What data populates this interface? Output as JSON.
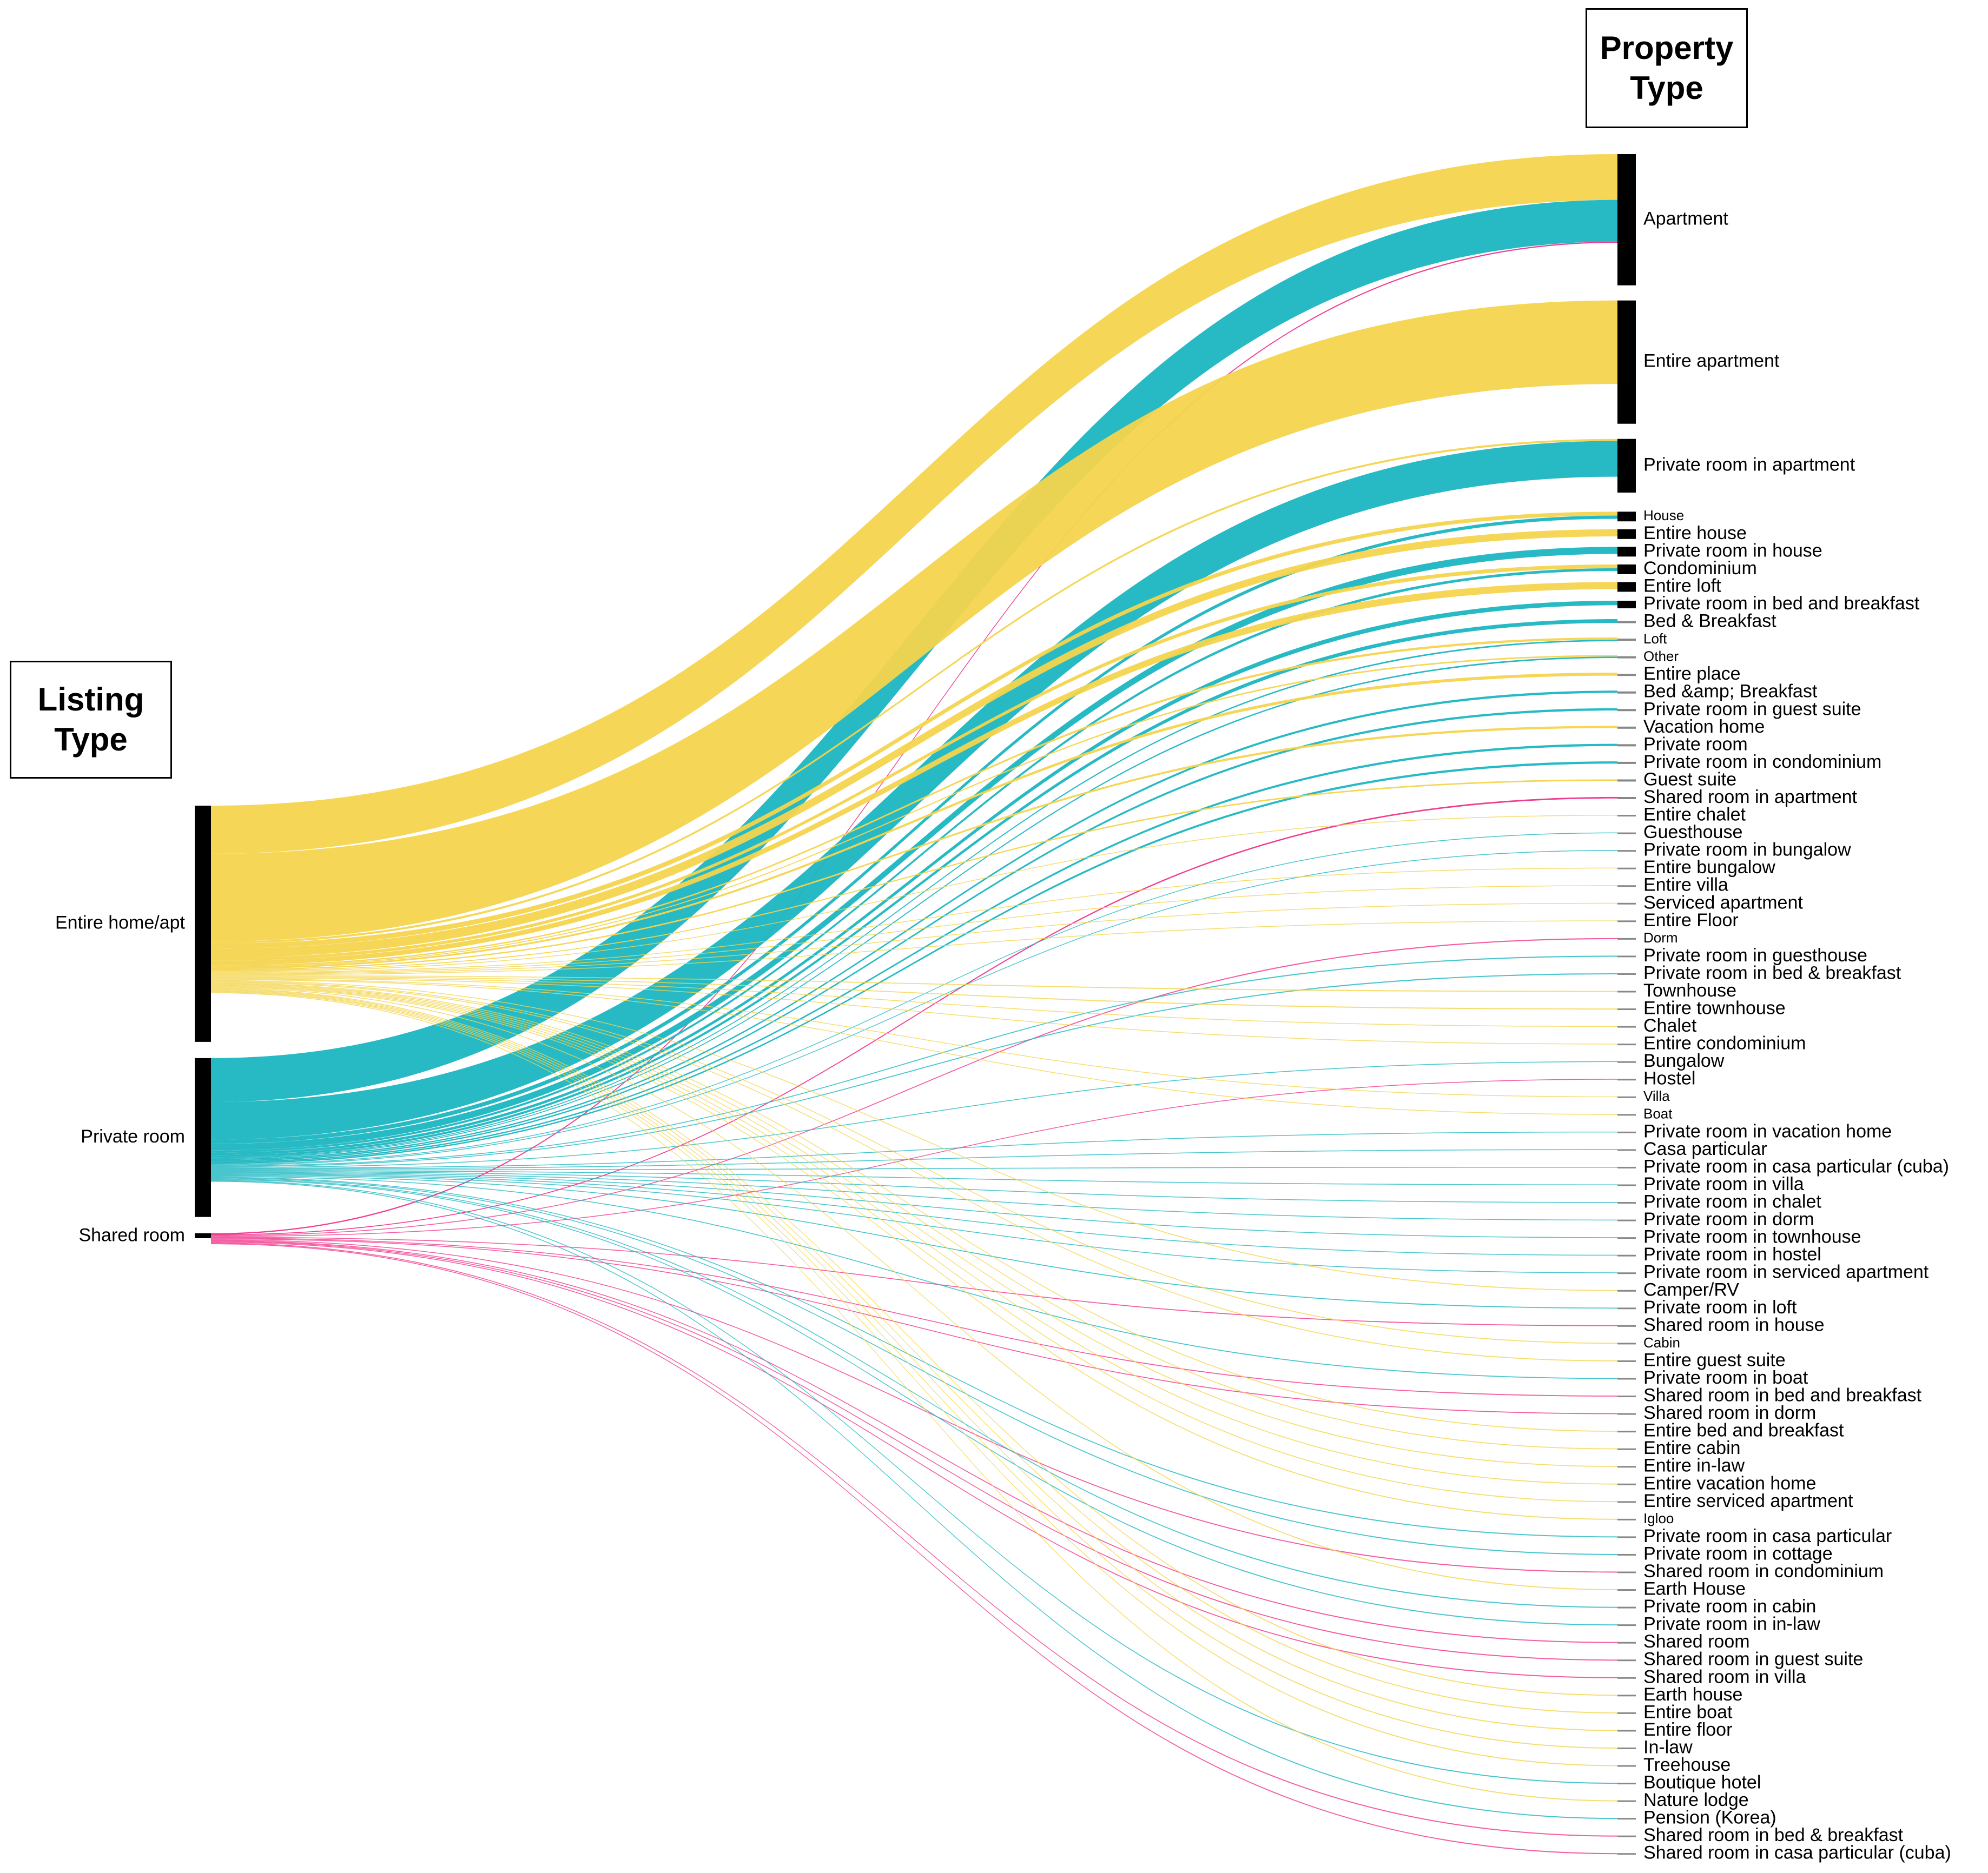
{
  "titles": {
    "left_line1": "Listing",
    "left_line2": "Type",
    "right_line1": "Property",
    "right_line2": "Type"
  },
  "colors": {
    "Entire home/apt": "#F4D44D",
    "Private room": "#1BB6C1",
    "Shared room": "#F0338A",
    "node": "#000000"
  },
  "sources": [
    {
      "name": "Entire home/apt",
      "share": 0.565
    },
    {
      "name": "Private room",
      "share": 0.38
    },
    {
      "name": "Shared room",
      "share": 0.012
    }
  ],
  "targets": [
    {
      "name": "Apartment",
      "share": 0.33
    },
    {
      "name": "Entire apartment",
      "share": 0.31
    },
    {
      "name": "Private room in apartment",
      "share": 0.135
    },
    {
      "name": "House",
      "share": 0.03
    },
    {
      "name": "Entire house",
      "share": 0.03
    },
    {
      "name": "Private room in house",
      "share": 0.022
    },
    {
      "name": "Condominium",
      "share": 0.018
    },
    {
      "name": "Entire loft",
      "share": 0.015
    },
    {
      "name": "Private room in bed and breakfast",
      "share": 0.01
    },
    {
      "name": "Bed & Breakfast",
      "share": 0.008
    },
    {
      "name": "Loft",
      "share": 0.006
    },
    {
      "name": "Other",
      "share": 0.006
    },
    {
      "name": "Entire place",
      "share": 0.006
    },
    {
      "name": "Bed &amp; Breakfast",
      "share": 0.005
    },
    {
      "name": "Private room in guest suite",
      "share": 0.005
    },
    {
      "name": "Vacation home",
      "share": 0.005
    },
    {
      "name": "Private room",
      "share": 0.004
    },
    {
      "name": "Private room in condominium",
      "share": 0.004
    },
    {
      "name": "Guest suite",
      "share": 0.003
    },
    {
      "name": "Shared room in apartment",
      "share": 0.003
    },
    {
      "name": "Entire chalet",
      "share": 0.002
    },
    {
      "name": "Guesthouse",
      "share": 0.002
    },
    {
      "name": "Private room in bungalow",
      "share": 0.002
    },
    {
      "name": "Entire bungalow",
      "share": 0.002
    },
    {
      "name": "Entire villa",
      "share": 0.002
    },
    {
      "name": "Serviced apartment",
      "share": 0.002
    },
    {
      "name": "Entire Floor",
      "share": 0.002
    },
    {
      "name": "Dorm",
      "share": 0.001
    },
    {
      "name": "Private room in guesthouse",
      "share": 0.001
    },
    {
      "name": "Private room in bed & breakfast",
      "share": 0.001
    },
    {
      "name": "Townhouse",
      "share": 0.001
    },
    {
      "name": "Entire townhouse",
      "share": 0.001
    },
    {
      "name": "Chalet",
      "share": 0.001
    },
    {
      "name": "Entire condominium",
      "share": 0.001
    },
    {
      "name": "Bungalow",
      "share": 0.001
    },
    {
      "name": "Hostel",
      "share": 0.001
    },
    {
      "name": "Villa",
      "share": 0.001
    },
    {
      "name": "Boat",
      "share": 0.001
    },
    {
      "name": "Private room in vacation home",
      "share": 0.001
    },
    {
      "name": "Casa particular",
      "share": 0.001
    },
    {
      "name": "Private room in casa particular (cuba)",
      "share": 0.001
    },
    {
      "name": "Private room in villa",
      "share": 0.001
    },
    {
      "name": "Private room in chalet",
      "share": 0.001
    },
    {
      "name": "Private room in dorm",
      "share": 0.001
    },
    {
      "name": "Private room in townhouse",
      "share": 0.001
    },
    {
      "name": "Private room in hostel",
      "share": 0.001
    },
    {
      "name": "Private room in serviced apartment",
      "share": 0.001
    },
    {
      "name": "Camper/RV",
      "share": 0.0005
    },
    {
      "name": "Private room in loft",
      "share": 0.0005
    },
    {
      "name": "Shared room in house",
      "share": 0.0005
    },
    {
      "name": "Cabin",
      "share": 0.0005
    },
    {
      "name": "Entire guest suite",
      "share": 0.0005
    },
    {
      "name": "Private room in boat",
      "share": 0.0005
    },
    {
      "name": "Shared room in bed and breakfast",
      "share": 0.0005
    },
    {
      "name": "Shared room in dorm",
      "share": 0.0005
    },
    {
      "name": "Entire bed and breakfast",
      "share": 0.0005
    },
    {
      "name": "Entire cabin",
      "share": 0.0005
    },
    {
      "name": "Entire in-law",
      "share": 0.0005
    },
    {
      "name": "Entire vacation home",
      "share": 0.0005
    },
    {
      "name": "Entire serviced apartment",
      "share": 0.0005
    },
    {
      "name": "Igloo",
      "share": 0.0003
    },
    {
      "name": "Private room in casa particular",
      "share": 0.0003
    },
    {
      "name": "Private room in cottage",
      "share": 0.0003
    },
    {
      "name": "Shared room in condominium",
      "share": 0.0003
    },
    {
      "name": "Earth House",
      "share": 0.0003
    },
    {
      "name": "Private room in cabin",
      "share": 0.0003
    },
    {
      "name": "Private room in in-law",
      "share": 0.0003
    },
    {
      "name": "Shared room",
      "share": 0.0003
    },
    {
      "name": "Shared room in guest suite",
      "share": 0.0003
    },
    {
      "name": "Shared room in villa",
      "share": 0.0003
    },
    {
      "name": "Earth house",
      "share": 0.0003
    },
    {
      "name": "Entire boat",
      "share": 0.0003
    },
    {
      "name": "Entire floor",
      "share": 0.0003
    },
    {
      "name": "In-law",
      "share": 0.0003
    },
    {
      "name": "Treehouse",
      "share": 0.0003
    },
    {
      "name": "Boutique hotel",
      "share": 0.0003
    },
    {
      "name": "Nature lodge",
      "share": 0.0003
    },
    {
      "name": "Pension (Korea)",
      "share": 0.0003
    },
    {
      "name": "Shared room in bed & breakfast",
      "share": 0.0003
    },
    {
      "name": "Shared room in casa particular (cuba)",
      "share": 0.0003
    }
  ],
  "flows": [
    {
      "source": "Entire home/apt",
      "target": "Apartment",
      "share": 0.115
    },
    {
      "source": "Private room",
      "target": "Apartment",
      "share": 0.105
    },
    {
      "source": "Shared room",
      "target": "Apartment",
      "share": 0.003
    },
    {
      "source": "Entire home/apt",
      "target": "Entire apartment",
      "share": 0.21
    },
    {
      "source": "Entire home/apt",
      "target": "Private room in apartment",
      "share": 0.005
    },
    {
      "source": "Private room",
      "target": "Private room in apartment",
      "share": 0.09
    },
    {
      "source": "Entire home/apt",
      "target": "House",
      "share": 0.012
    },
    {
      "source": "Private room",
      "target": "House",
      "share": 0.01
    },
    {
      "source": "Entire home/apt",
      "target": "Entire house",
      "share": 0.022
    },
    {
      "source": "Private room",
      "target": "Private room in house",
      "share": 0.016
    },
    {
      "source": "Entire home/apt",
      "target": "Condominium",
      "share": 0.007
    },
    {
      "source": "Private room",
      "target": "Condominium",
      "share": 0.005
    },
    {
      "source": "Entire home/apt",
      "target": "Entire loft",
      "share": 0.011
    },
    {
      "source": "Private room",
      "target": "Private room in bed and breakfast",
      "share": 0.006
    },
    {
      "source": "Private room",
      "target": "Bed & Breakfast",
      "share": 0.005
    },
    {
      "source": "Entire home/apt",
      "target": "Loft",
      "share": 0.003
    },
    {
      "source": "Private room",
      "target": "Loft",
      "share": 0.002
    },
    {
      "source": "Entire home/apt",
      "target": "Other",
      "share": 0.002
    },
    {
      "source": "Private room",
      "target": "Other",
      "share": 0.002
    },
    {
      "source": "Entire home/apt",
      "target": "Entire place",
      "share": 0.004
    },
    {
      "source": "Private room",
      "target": "Bed &amp; Breakfast",
      "share": 0.003
    },
    {
      "source": "Private room",
      "target": "Private room in guest suite",
      "share": 0.003
    },
    {
      "source": "Entire home/apt",
      "target": "Vacation home",
      "share": 0.003
    },
    {
      "source": "Private room",
      "target": "Private room",
      "share": 0.003
    },
    {
      "source": "Private room",
      "target": "Private room in condominium",
      "share": 0.003
    },
    {
      "source": "Entire home/apt",
      "target": "Guest suite",
      "share": 0.002
    },
    {
      "source": "Shared room",
      "target": "Shared room in apartment",
      "share": 0.002
    },
    {
      "source": "Entire home/apt",
      "target": "Entire chalet",
      "share": 0.001
    },
    {
      "source": "Private room",
      "target": "Guesthouse",
      "share": 0.001
    },
    {
      "source": "Private room",
      "target": "Private room in bungalow",
      "share": 0.001
    },
    {
      "source": "Entire home/apt",
      "target": "Entire bungalow",
      "share": 0.001
    },
    {
      "source": "Entire home/apt",
      "target": "Entire villa",
      "share": 0.001
    },
    {
      "source": "Entire home/apt",
      "target": "Serviced apartment",
      "share": 0.001
    },
    {
      "source": "Entire home/apt",
      "target": "Entire Floor",
      "share": 0.001
    },
    {
      "source": "Shared room",
      "target": "Dorm",
      "share": 0.0007
    },
    {
      "source": "Private room",
      "target": "Private room in guesthouse",
      "share": 0.0007
    },
    {
      "source": "Private room",
      "target": "Private room in bed & breakfast",
      "share": 0.0007
    },
    {
      "source": "Entire home/apt",
      "target": "Townhouse",
      "share": 0.0007
    },
    {
      "source": "Entire home/apt",
      "target": "Entire townhouse",
      "share": 0.0007
    },
    {
      "source": "Entire home/apt",
      "target": "Chalet",
      "share": 0.0005
    },
    {
      "source": "Entire home/apt",
      "target": "Entire condominium",
      "share": 0.0005
    },
    {
      "source": "Private room",
      "target": "Bungalow",
      "share": 0.0005
    },
    {
      "source": "Shared room",
      "target": "Hostel",
      "share": 0.0005
    },
    {
      "source": "Entire home/apt",
      "target": "Villa",
      "share": 0.0005
    },
    {
      "source": "Entire home/apt",
      "target": "Boat",
      "share": 0.0005
    },
    {
      "source": "Private room",
      "target": "Private room in vacation home",
      "share": 0.0005
    },
    {
      "source": "Private room",
      "target": "Casa particular",
      "share": 0.0005
    },
    {
      "source": "Private room",
      "target": "Private room in casa particular (cuba)",
      "share": 0.0005
    },
    {
      "source": "Private room",
      "target": "Private room in villa",
      "share": 0.0005
    },
    {
      "source": "Private room",
      "target": "Private room in chalet",
      "share": 0.0005
    },
    {
      "source": "Private room",
      "target": "Private room in dorm",
      "share": 0.0005
    },
    {
      "source": "Private room",
      "target": "Private room in townhouse",
      "share": 0.0005
    },
    {
      "source": "Private room",
      "target": "Private room in hostel",
      "share": 0.0005
    },
    {
      "source": "Private room",
      "target": "Private room in serviced apartment",
      "share": 0.0005
    },
    {
      "source": "Entire home/apt",
      "target": "Camper/RV",
      "share": 0.0003
    },
    {
      "source": "Private room",
      "target": "Private room in loft",
      "share": 0.0003
    },
    {
      "source": "Shared room",
      "target": "Shared room in house",
      "share": 0.0003
    },
    {
      "source": "Entire home/apt",
      "target": "Cabin",
      "share": 0.0003
    },
    {
      "source": "Entire home/apt",
      "target": "Entire guest suite",
      "share": 0.0003
    },
    {
      "source": "Private room",
      "target": "Private room in boat",
      "share": 0.0003
    },
    {
      "source": "Shared room",
      "target": "Shared room in bed and breakfast",
      "share": 0.0003
    },
    {
      "source": "Shared room",
      "target": "Shared room in dorm",
      "share": 0.0003
    },
    {
      "source": "Entire home/apt",
      "target": "Entire bed and breakfast",
      "share": 0.0003
    },
    {
      "source": "Entire home/apt",
      "target": "Entire cabin",
      "share": 0.0003
    },
    {
      "source": "Entire home/apt",
      "target": "Entire in-law",
      "share": 0.0003
    },
    {
      "source": "Entire home/apt",
      "target": "Entire vacation home",
      "share": 0.0003
    },
    {
      "source": "Entire home/apt",
      "target": "Entire serviced apartment",
      "share": 0.0003
    },
    {
      "source": "Entire home/apt",
      "target": "Igloo",
      "share": 0.0002
    },
    {
      "source": "Private room",
      "target": "Private room in casa particular",
      "share": 0.0002
    },
    {
      "source": "Private room",
      "target": "Private room in cottage",
      "share": 0.0002
    },
    {
      "source": "Shared room",
      "target": "Shared room in condominium",
      "share": 0.0002
    },
    {
      "source": "Entire home/apt",
      "target": "Earth House",
      "share": 0.0002
    },
    {
      "source": "Private room",
      "target": "Private room in cabin",
      "share": 0.0002
    },
    {
      "source": "Private room",
      "target": "Private room in in-law",
      "share": 0.0002
    },
    {
      "source": "Shared room",
      "target": "Shared room",
      "share": 0.0002
    },
    {
      "source": "Shared room",
      "target": "Shared room in guest suite",
      "share": 0.0002
    },
    {
      "source": "Shared room",
      "target": "Shared room in villa",
      "share": 0.0002
    },
    {
      "source": "Entire home/apt",
      "target": "Earth house",
      "share": 0.0002
    },
    {
      "source": "Entire home/apt",
      "target": "Entire boat",
      "share": 0.0002
    },
    {
      "source": "Entire home/apt",
      "target": "Entire floor",
      "share": 0.0002
    },
    {
      "source": "Entire home/apt",
      "target": "In-law",
      "share": 0.0002
    },
    {
      "source": "Entire home/apt",
      "target": "Treehouse",
      "share": 0.0002
    },
    {
      "source": "Private room",
      "target": "Boutique hotel",
      "share": 0.0002
    },
    {
      "source": "Entire home/apt",
      "target": "Nature lodge",
      "share": 0.0002
    },
    {
      "source": "Private room",
      "target": "Pension (Korea)",
      "share": 0.0002
    },
    {
      "source": "Shared room",
      "target": "Shared room in bed & breakfast",
      "share": 0.0002
    },
    {
      "source": "Shared room",
      "target": "Shared room in casa particular (cuba)",
      "share": 0.0002
    }
  ]
}
